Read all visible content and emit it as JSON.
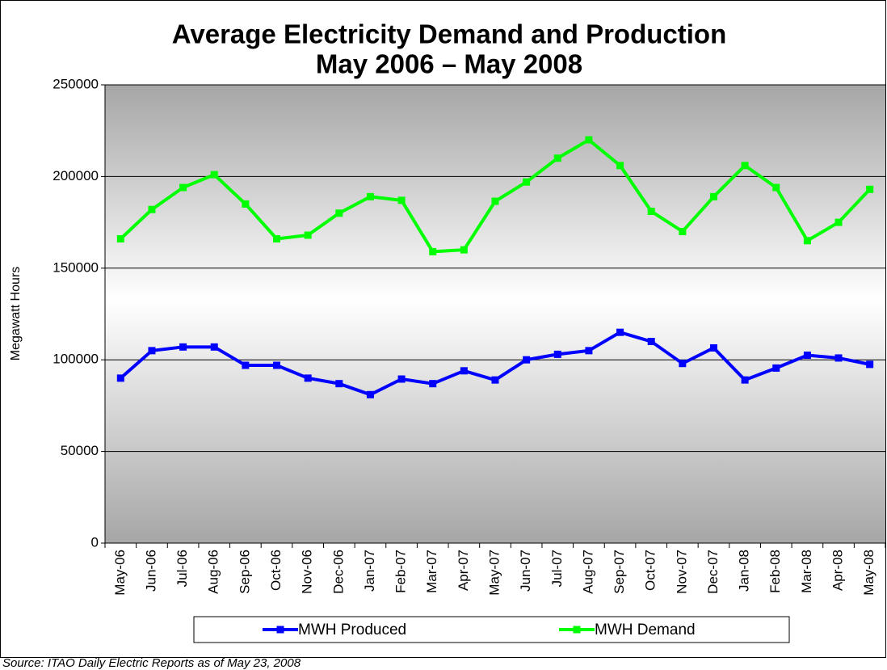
{
  "chart_data": {
    "type": "line",
    "title": "Average Electricity Demand and Production",
    "subtitle": "May 2006 – May 2008",
    "y_label": "Megawatt Hours",
    "note": "Source:  ITAO Daily Electric Reports as of May 23, 2008",
    "categories": [
      "May-06",
      "Jun-06",
      "Jul-06",
      "Aug-06",
      "Sep-06",
      "Oct-06",
      "Nov-06",
      "Dec-06",
      "Jan-07",
      "Feb-07",
      "Mar-07",
      "Apr-07",
      "May-07",
      "Jun-07",
      "Jul-07",
      "Aug-07",
      "Sep-07",
      "Oct-07",
      "Nov-07",
      "Dec-07",
      "Jan-08",
      "Feb-08",
      "Mar-08",
      "Apr-08",
      "May-08"
    ],
    "series": [
      {
        "name": "MWH Produced",
        "color": "#0000ff",
        "values": [
          90000,
          105000,
          107000,
          107000,
          97000,
          97000,
          90000,
          87000,
          81000,
          89500,
          87000,
          94000,
          89000,
          100000,
          103000,
          105000,
          115000,
          110000,
          98000,
          106500,
          89000,
          95500,
          102500,
          101000,
          97500
        ]
      },
      {
        "name": "MWH Demand",
        "color": "#00ff00",
        "values": [
          166000,
          182000,
          194000,
          201000,
          185000,
          166000,
          168000,
          180000,
          189000,
          187000,
          159000,
          160000,
          186500,
          197000,
          210000,
          220000,
          206000,
          181000,
          170000,
          189000,
          206000,
          194000,
          165000,
          175000,
          193000
        ]
      }
    ],
    "ylim": [
      0,
      250000
    ],
    "yticks": [
      0,
      50000,
      100000,
      150000,
      200000,
      250000
    ],
    "grid": true,
    "legend": "bottom"
  }
}
